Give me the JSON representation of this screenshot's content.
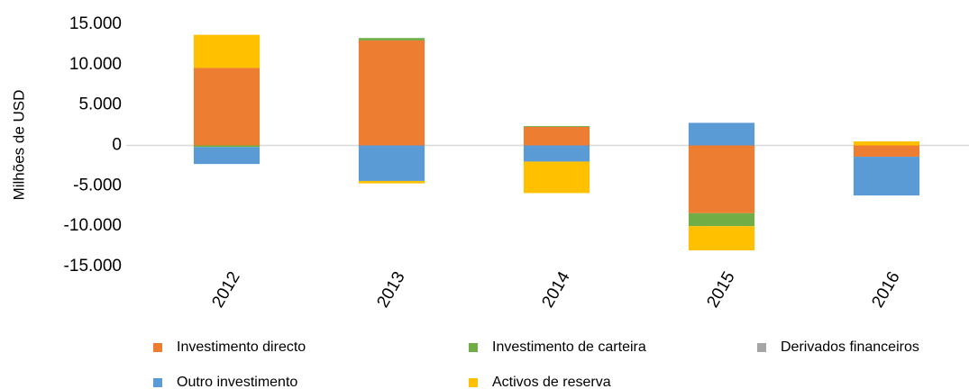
{
  "chart_data": {
    "type": "stacked_bar",
    "y_axis_label": "Milhões de USD",
    "categories": [
      "2012",
      "2013",
      "2014",
      "2015",
      "2016"
    ],
    "series": [
      {
        "name": "Investimento directo",
        "color": "#ed7d31",
        "values": [
          9600,
          13000,
          2300,
          -8400,
          -1400
        ]
      },
      {
        "name": "Investimento de carteira",
        "color": "#70ad47",
        "values": [
          -200,
          300,
          100,
          -1600,
          0
        ]
      },
      {
        "name": "Derivados financeiros",
        "color": "#a5a5a5",
        "values": [
          0,
          0,
          0,
          0,
          0
        ]
      },
      {
        "name": "Outro investimento",
        "color": "#5b9bd5",
        "values": [
          -2100,
          -4400,
          -2000,
          2800,
          -4800
        ]
      },
      {
        "name": "Activos de reserva",
        "color": "#ffc000",
        "values": [
          4100,
          -300,
          -3900,
          -3000,
          500
        ]
      }
    ],
    "ylim": [
      -15000,
      15000
    ],
    "yticks": [
      {
        "value": -15000,
        "label": "-15.000"
      },
      {
        "value": -10000,
        "label": "-10.000"
      },
      {
        "value": -5000,
        "label": "-5.000"
      },
      0,
      {
        "value": 5000,
        "label": "5.000"
      },
      {
        "value": 10000,
        "label": "10.000"
      },
      {
        "value": 15000,
        "label": "15.000"
      }
    ],
    "legend": "bottom"
  }
}
